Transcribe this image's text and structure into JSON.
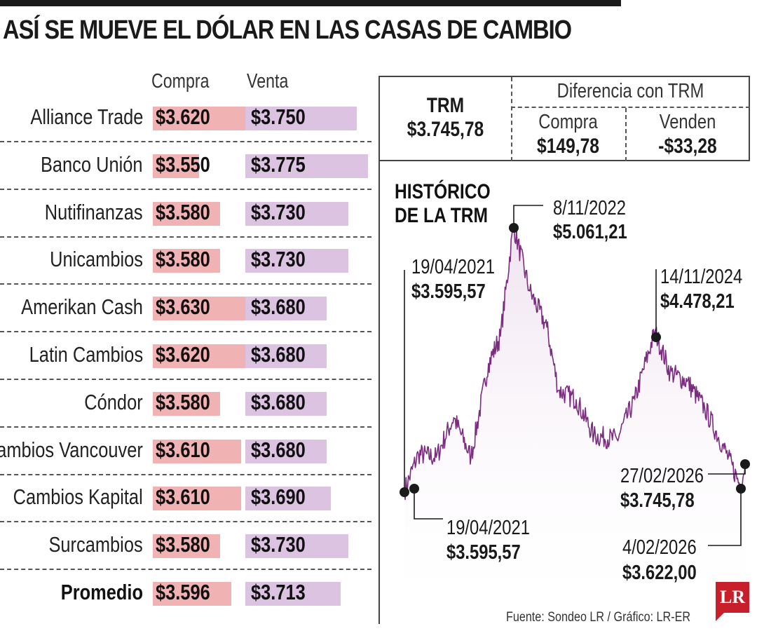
{
  "title": "ASÍ SE MUEVE EL DÓLAR EN LAS CASAS DE CAMBIO",
  "table": {
    "col_compra": "Compra",
    "col_venta": "Venta",
    "rows": [
      {
        "name": "Alliance Trade",
        "compra": "$3.620",
        "venta": "$3.750"
      },
      {
        "name": "Banco Unión",
        "compra": "$3.550",
        "venta": "$3.775"
      },
      {
        "name": "Nutifinanzas",
        "compra": "$3.580",
        "venta": "$3.730"
      },
      {
        "name": "Unicambios",
        "compra": "$3.580",
        "venta": "$3.730"
      },
      {
        "name": "Amerikan Cash",
        "compra": "$3.630",
        "venta": "$3.680"
      },
      {
        "name": "Latin Cambios",
        "compra": "$3.620",
        "venta": "$3.680"
      },
      {
        "name": "Cóndor",
        "compra": "$3.580",
        "venta": "$3.680"
      },
      {
        "name": "Cambios Vancouver",
        "compra": "$3.610",
        "venta": "$3.680"
      },
      {
        "name": "Cambios Kapital",
        "compra": "$3.610",
        "venta": "$3.690"
      },
      {
        "name": "Surcambios",
        "compra": "$3.580",
        "venta": "$3.730"
      }
    ],
    "promedio": {
      "name": "Promedio",
      "compra": "$3.596",
      "venta": "$3.713"
    }
  },
  "trm_box": {
    "trm_label": "TRM",
    "trm_value": "$3.745,78",
    "diff_title": "Diferencia con TRM",
    "compra_label": "Compra",
    "compra_value": "$149,78",
    "venden_label": "Venden",
    "venden_value": "-$33,28"
  },
  "chart_data": {
    "type": "line",
    "title": "HISTÓRICO DE LA TRM",
    "title_line1": "HISTÓRICO",
    "title_line2": "DE LA TRM",
    "xlabel": "",
    "ylabel": "",
    "x_range": [
      "19/04/2021",
      "27/02/2026"
    ],
    "ylim": [
      3500,
      5100
    ],
    "grid": false,
    "series": [
      {
        "name": "TRM",
        "color": "#7b2d7f",
        "points": [
          {
            "x": "19/04/2021",
            "y": 3595.57
          },
          {
            "x": "01/07/2021",
            "y": 3800
          },
          {
            "x": "01/10/2021",
            "y": 3780
          },
          {
            "x": "01/01/2022",
            "y": 4000
          },
          {
            "x": "01/04/2022",
            "y": 3780
          },
          {
            "x": "01/07/2022",
            "y": 4300
          },
          {
            "x": "01/09/2022",
            "y": 4450
          },
          {
            "x": "8/11/2022",
            "y": 5061.21
          },
          {
            "x": "01/02/2023",
            "y": 4700
          },
          {
            "x": "01/05/2023",
            "y": 4500
          },
          {
            "x": "01/07/2023",
            "y": 4150
          },
          {
            "x": "01/10/2023",
            "y": 4100
          },
          {
            "x": "01/01/2024",
            "y": 3900
          },
          {
            "x": "01/05/2024",
            "y": 3880
          },
          {
            "x": "01/08/2024",
            "y": 4100
          },
          {
            "x": "14/11/2024",
            "y": 4478.21
          },
          {
            "x": "01/02/2025",
            "y": 4250
          },
          {
            "x": "01/05/2025",
            "y": 4200
          },
          {
            "x": "01/08/2025",
            "y": 4050
          },
          {
            "x": "01/11/2025",
            "y": 3850
          },
          {
            "x": "4/02/2026",
            "y": 3622.0
          },
          {
            "x": "27/02/2026",
            "y": 3745.78
          }
        ]
      }
    ],
    "annotations": [
      {
        "date": "19/04/2021",
        "value": "$3.595,57",
        "y": 3595.57
      },
      {
        "date": "8/11/2022",
        "value": "$5.061,21",
        "y": 5061.21
      },
      {
        "date": "14/11/2024",
        "value": "$4.478,21",
        "y": 4478.21
      },
      {
        "date": "19/04/2021",
        "value": "$3.595,57",
        "y": 3595.57
      },
      {
        "date": "27/02/2026",
        "value": "$3.745,78",
        "y": 3745.78
      },
      {
        "date": "4/02/2026",
        "value": "$3.622,00",
        "y": 3622.0
      }
    ]
  },
  "source": "Fuente: Sondeo LR / Gráfico: LR-ER",
  "logo": "LR",
  "colors": {
    "compra_bar": "#f0b2b3",
    "venta_bar": "#dcc3e2",
    "line": "#7b2d7f",
    "area_top": "#efe2f0",
    "dark": "#1a1a1a",
    "logo": "#c8202a"
  }
}
